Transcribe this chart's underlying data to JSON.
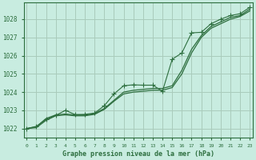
{
  "title": "Graphe pression niveau de la mer (hPa)",
  "background_color": "#c8ece0",
  "grid_color": "#aaccbb",
  "line_color": "#2d6e3e",
  "ylim": [
    1021.5,
    1028.9
  ],
  "xlim": [
    -0.3,
    23.3
  ],
  "yticks": [
    1022,
    1023,
    1024,
    1025,
    1026,
    1027,
    1028
  ],
  "xticks": [
    0,
    1,
    2,
    3,
    4,
    5,
    6,
    7,
    8,
    9,
    10,
    11,
    12,
    13,
    14,
    15,
    16,
    17,
    18,
    19,
    20,
    21,
    22,
    23
  ],
  "line1_x": [
    0,
    1,
    2,
    3,
    4,
    5,
    6,
    7,
    8,
    9,
    10,
    11,
    12,
    13,
    14,
    15,
    16,
    17,
    18,
    19,
    20,
    21,
    22,
    23
  ],
  "line1_y": [
    1022.0,
    1022.1,
    1022.55,
    1022.75,
    1022.8,
    1022.75,
    1022.75,
    1022.82,
    1023.1,
    1023.55,
    1024.0,
    1024.1,
    1024.15,
    1024.2,
    1024.2,
    1024.35,
    1025.2,
    1026.35,
    1027.1,
    1027.6,
    1027.85,
    1028.1,
    1028.2,
    1028.55
  ],
  "line2_x": [
    0,
    1,
    2,
    3,
    4,
    5,
    6,
    7,
    8,
    9,
    10,
    11,
    12,
    13,
    14,
    15,
    16,
    17,
    18,
    19,
    20,
    21,
    22,
    23
  ],
  "line2_y": [
    1022.0,
    1022.05,
    1022.45,
    1022.7,
    1022.75,
    1022.7,
    1022.7,
    1022.78,
    1023.05,
    1023.5,
    1023.9,
    1024.0,
    1024.05,
    1024.1,
    1024.1,
    1024.25,
    1025.0,
    1026.15,
    1027.0,
    1027.5,
    1027.75,
    1028.0,
    1028.15,
    1028.45
  ],
  "line3_x": [
    0,
    1,
    2,
    3,
    4,
    5,
    6,
    7,
    8,
    9,
    10,
    11,
    12,
    13,
    14,
    15,
    16,
    17,
    18,
    19,
    20,
    21,
    22,
    23
  ],
  "line3_y": [
    1022.0,
    1022.12,
    1022.5,
    1022.72,
    1023.0,
    1022.77,
    1022.78,
    1022.85,
    1023.25,
    1023.9,
    1024.35,
    1024.4,
    1024.38,
    1024.38,
    1024.05,
    1025.8,
    1026.15,
    1027.25,
    1027.28,
    1027.75,
    1028.0,
    1028.2,
    1028.3,
    1028.65
  ]
}
